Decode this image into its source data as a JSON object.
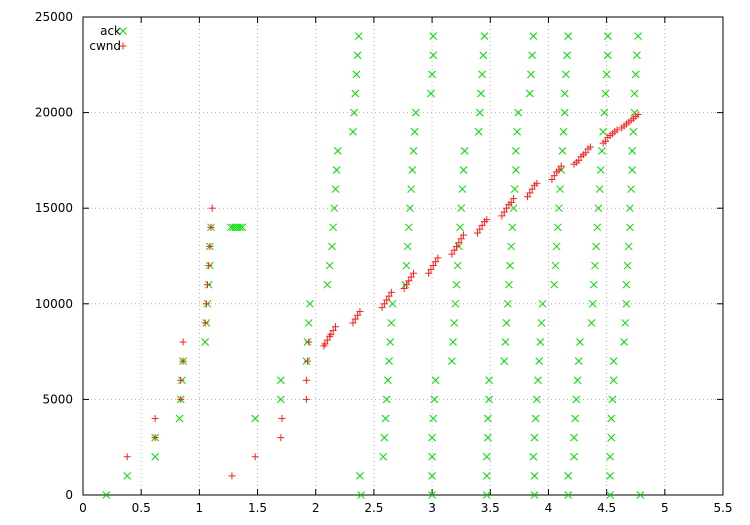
{
  "chart_data": {
    "type": "scatter",
    "xlim": [
      0,
      5.5
    ],
    "ylim": [
      0,
      25000
    ],
    "xticks": [
      0,
      0.5,
      1,
      1.5,
      2,
      2.5,
      3,
      3.5,
      4,
      4.5,
      5,
      5.5
    ],
    "yticks": [
      0,
      5000,
      10000,
      15000,
      20000,
      25000
    ],
    "xtick_labels": [
      "0",
      "0.5",
      "1",
      "1.5",
      "2",
      "2.5",
      "3",
      "3.5",
      "4",
      "4.5",
      "5",
      "5.5"
    ],
    "ytick_labels": [
      "0",
      "5000",
      "10000",
      "15000",
      "20000",
      "25000"
    ],
    "grid": true,
    "legend_position": "top-left",
    "series": [
      {
        "name": "ack",
        "marker": "x",
        "color": "#00dd00",
        "points": [
          [
            0.2,
            0
          ],
          [
            0.38,
            1000
          ],
          [
            0.62,
            2000
          ],
          [
            0.62,
            3000
          ],
          [
            0.83,
            4000
          ],
          [
            0.84,
            5000
          ],
          [
            0.85,
            6000
          ],
          [
            0.86,
            7000
          ],
          [
            1.05,
            8000
          ],
          [
            1.06,
            9000
          ],
          [
            1.07,
            10000
          ],
          [
            1.08,
            11000
          ],
          [
            1.09,
            12000
          ],
          [
            1.09,
            13000
          ],
          [
            1.1,
            14000
          ],
          [
            1.27,
            14000
          ],
          [
            1.29,
            14000
          ],
          [
            1.31,
            14000
          ],
          [
            1.33,
            14000
          ],
          [
            1.35,
            14000
          ],
          [
            1.37,
            14000
          ],
          [
            1.48,
            4000
          ],
          [
            1.7,
            5000
          ],
          [
            1.7,
            6000
          ],
          [
            1.92,
            7000
          ],
          [
            1.93,
            8000
          ],
          [
            1.94,
            9000
          ],
          [
            1.95,
            10000
          ],
          [
            2.1,
            11000
          ],
          [
            2.12,
            12000
          ],
          [
            2.14,
            13000
          ],
          [
            2.15,
            14000
          ],
          [
            2.16,
            15000
          ],
          [
            2.17,
            16000
          ],
          [
            2.18,
            17000
          ],
          [
            2.19,
            18000
          ],
          [
            2.32,
            19000
          ],
          [
            2.33,
            20000
          ],
          [
            2.34,
            21000
          ],
          [
            2.35,
            22000
          ],
          [
            2.36,
            23000
          ],
          [
            2.37,
            24000
          ],
          [
            2.39,
            0
          ],
          [
            2.38,
            1000
          ],
          [
            2.58,
            2000
          ],
          [
            2.59,
            3000
          ],
          [
            2.6,
            4000
          ],
          [
            2.61,
            5000
          ],
          [
            2.62,
            6000
          ],
          [
            2.63,
            7000
          ],
          [
            2.64,
            8000
          ],
          [
            2.65,
            9000
          ],
          [
            2.66,
            10000
          ],
          [
            2.77,
            11000
          ],
          [
            2.78,
            12000
          ],
          [
            2.79,
            13000
          ],
          [
            2.8,
            14000
          ],
          [
            2.81,
            15000
          ],
          [
            2.82,
            16000
          ],
          [
            2.83,
            17000
          ],
          [
            2.84,
            18000
          ],
          [
            2.85,
            19000
          ],
          [
            2.86,
            20000
          ],
          [
            2.99,
            21000
          ],
          [
            3.0,
            22000
          ],
          [
            3.01,
            23000
          ],
          [
            3.01,
            24000
          ],
          [
            3.0,
            0
          ],
          [
            3.0,
            1000
          ],
          [
            3.0,
            2000
          ],
          [
            3.0,
            3000
          ],
          [
            3.01,
            4000
          ],
          [
            3.02,
            5000
          ],
          [
            3.03,
            6000
          ],
          [
            3.17,
            7000
          ],
          [
            3.18,
            8000
          ],
          [
            3.19,
            9000
          ],
          [
            3.2,
            10000
          ],
          [
            3.21,
            11000
          ],
          [
            3.22,
            12000
          ],
          [
            3.23,
            13000
          ],
          [
            3.24,
            14000
          ],
          [
            3.25,
            15000
          ],
          [
            3.26,
            16000
          ],
          [
            3.27,
            17000
          ],
          [
            3.28,
            18000
          ],
          [
            3.4,
            19000
          ],
          [
            3.41,
            20000
          ],
          [
            3.42,
            21000
          ],
          [
            3.43,
            22000
          ],
          [
            3.44,
            23000
          ],
          [
            3.45,
            24000
          ],
          [
            3.47,
            0
          ],
          [
            3.47,
            1000
          ],
          [
            3.47,
            2000
          ],
          [
            3.48,
            3000
          ],
          [
            3.48,
            4000
          ],
          [
            3.49,
            5000
          ],
          [
            3.49,
            6000
          ],
          [
            3.62,
            7000
          ],
          [
            3.63,
            8000
          ],
          [
            3.64,
            9000
          ],
          [
            3.65,
            10000
          ],
          [
            3.66,
            11000
          ],
          [
            3.67,
            12000
          ],
          [
            3.68,
            13000
          ],
          [
            3.69,
            14000
          ],
          [
            3.7,
            15000
          ],
          [
            3.71,
            16000
          ],
          [
            3.72,
            17000
          ],
          [
            3.72,
            18000
          ],
          [
            3.73,
            19000
          ],
          [
            3.74,
            20000
          ],
          [
            3.84,
            21000
          ],
          [
            3.85,
            22000
          ],
          [
            3.86,
            23000
          ],
          [
            3.87,
            24000
          ],
          [
            3.88,
            0
          ],
          [
            3.88,
            1000
          ],
          [
            3.87,
            2000
          ],
          [
            3.88,
            3000
          ],
          [
            3.89,
            4000
          ],
          [
            3.9,
            5000
          ],
          [
            3.91,
            6000
          ],
          [
            3.92,
            7000
          ],
          [
            3.93,
            8000
          ],
          [
            3.94,
            9000
          ],
          [
            3.95,
            10000
          ],
          [
            4.05,
            11000
          ],
          [
            4.06,
            12000
          ],
          [
            4.07,
            13000
          ],
          [
            4.08,
            14000
          ],
          [
            4.09,
            15000
          ],
          [
            4.1,
            16000
          ],
          [
            4.11,
            17000
          ],
          [
            4.12,
            18000
          ],
          [
            4.13,
            19000
          ],
          [
            4.14,
            20000
          ],
          [
            4.14,
            21000
          ],
          [
            4.15,
            22000
          ],
          [
            4.16,
            23000
          ],
          [
            4.17,
            24000
          ],
          [
            4.17,
            0
          ],
          [
            4.17,
            1000
          ],
          [
            4.22,
            2000
          ],
          [
            4.22,
            3000
          ],
          [
            4.23,
            4000
          ],
          [
            4.24,
            5000
          ],
          [
            4.25,
            6000
          ],
          [
            4.26,
            7000
          ],
          [
            4.27,
            8000
          ],
          [
            4.37,
            9000
          ],
          [
            4.38,
            10000
          ],
          [
            4.39,
            11000
          ],
          [
            4.4,
            12000
          ],
          [
            4.41,
            13000
          ],
          [
            4.42,
            14000
          ],
          [
            4.43,
            15000
          ],
          [
            4.44,
            16000
          ],
          [
            4.45,
            17000
          ],
          [
            4.46,
            18000
          ],
          [
            4.47,
            19000
          ],
          [
            4.48,
            20000
          ],
          [
            4.49,
            21000
          ],
          [
            4.5,
            22000
          ],
          [
            4.51,
            23000
          ],
          [
            4.51,
            24000
          ],
          [
            4.53,
            0
          ],
          [
            4.53,
            1000
          ],
          [
            4.53,
            2000
          ],
          [
            4.54,
            3000
          ],
          [
            4.54,
            4000
          ],
          [
            4.55,
            5000
          ],
          [
            4.56,
            6000
          ],
          [
            4.56,
            7000
          ],
          [
            4.65,
            8000
          ],
          [
            4.66,
            9000
          ],
          [
            4.67,
            10000
          ],
          [
            4.67,
            11000
          ],
          [
            4.68,
            12000
          ],
          [
            4.69,
            13000
          ],
          [
            4.7,
            14000
          ],
          [
            4.7,
            15000
          ],
          [
            4.71,
            16000
          ],
          [
            4.72,
            17000
          ],
          [
            4.72,
            18000
          ],
          [
            4.73,
            19000
          ],
          [
            4.74,
            20000
          ],
          [
            4.74,
            21000
          ],
          [
            4.75,
            22000
          ],
          [
            4.76,
            23000
          ],
          [
            4.77,
            24000
          ],
          [
            4.79,
            0
          ]
        ]
      },
      {
        "name": "cwnd",
        "marker": "+",
        "color": "#ff2020",
        "points": [
          [
            0.38,
            2000
          ],
          [
            0.62,
            3000
          ],
          [
            0.62,
            4000
          ],
          [
            0.84,
            5000
          ],
          [
            0.84,
            6000
          ],
          [
            0.86,
            7000
          ],
          [
            0.86,
            8000
          ],
          [
            1.05,
            9000
          ],
          [
            1.06,
            10000
          ],
          [
            1.07,
            11000
          ],
          [
            1.08,
            12000
          ],
          [
            1.09,
            13000
          ],
          [
            1.1,
            14000
          ],
          [
            1.11,
            15000
          ],
          [
            1.28,
            1000
          ],
          [
            1.48,
            2000
          ],
          [
            1.7,
            3000
          ],
          [
            1.71,
            4000
          ],
          [
            1.92,
            5000
          ],
          [
            1.92,
            6000
          ],
          [
            1.93,
            7000
          ],
          [
            1.94,
            8000
          ],
          [
            2.07,
            7800
          ],
          [
            2.08,
            7900
          ],
          [
            2.1,
            8100
          ],
          [
            2.12,
            8300
          ],
          [
            2.13,
            8400
          ],
          [
            2.15,
            8600
          ],
          [
            2.17,
            8800
          ],
          [
            2.32,
            9000
          ],
          [
            2.34,
            9200
          ],
          [
            2.36,
            9400
          ],
          [
            2.38,
            9600
          ],
          [
            2.57,
            9800
          ],
          [
            2.59,
            10000
          ],
          [
            2.61,
            10200
          ],
          [
            2.63,
            10400
          ],
          [
            2.65,
            10600
          ],
          [
            2.76,
            10800
          ],
          [
            2.78,
            11000
          ],
          [
            2.8,
            11200
          ],
          [
            2.82,
            11400
          ],
          [
            2.84,
            11600
          ],
          [
            2.97,
            11600
          ],
          [
            2.99,
            11800
          ],
          [
            3.01,
            12000
          ],
          [
            3.03,
            12200
          ],
          [
            3.05,
            12400
          ],
          [
            3.17,
            12600
          ],
          [
            3.19,
            12800
          ],
          [
            3.21,
            13000
          ],
          [
            3.23,
            13200
          ],
          [
            3.25,
            13400
          ],
          [
            3.27,
            13600
          ],
          [
            3.39,
            13700
          ],
          [
            3.41,
            13900
          ],
          [
            3.43,
            14100
          ],
          [
            3.45,
            14300
          ],
          [
            3.47,
            14400
          ],
          [
            3.6,
            14600
          ],
          [
            3.62,
            14800
          ],
          [
            3.64,
            15000
          ],
          [
            3.66,
            15200
          ],
          [
            3.68,
            15300
          ],
          [
            3.7,
            15500
          ],
          [
            3.82,
            15600
          ],
          [
            3.84,
            15800
          ],
          [
            3.86,
            16000
          ],
          [
            3.88,
            16200
          ],
          [
            3.9,
            16300
          ],
          [
            4.03,
            16500
          ],
          [
            4.05,
            16700
          ],
          [
            4.07,
            16900
          ],
          [
            4.09,
            17000
          ],
          [
            4.11,
            17200
          ],
          [
            4.22,
            17300
          ],
          [
            4.24,
            17400
          ],
          [
            4.26,
            17500
          ],
          [
            4.28,
            17700
          ],
          [
            4.3,
            17800
          ],
          [
            4.32,
            17900
          ],
          [
            4.34,
            18100
          ],
          [
            4.36,
            18200
          ],
          [
            4.47,
            18400
          ],
          [
            4.49,
            18500
          ],
          [
            4.51,
            18700
          ],
          [
            4.53,
            18800
          ],
          [
            4.55,
            18900
          ],
          [
            4.57,
            19000
          ],
          [
            4.59,
            19100
          ],
          [
            4.63,
            19200
          ],
          [
            4.65,
            19300
          ],
          [
            4.67,
            19400
          ],
          [
            4.69,
            19500
          ],
          [
            4.71,
            19600
          ],
          [
            4.73,
            19700
          ],
          [
            4.75,
            19800
          ],
          [
            4.77,
            19900
          ]
        ]
      }
    ]
  }
}
